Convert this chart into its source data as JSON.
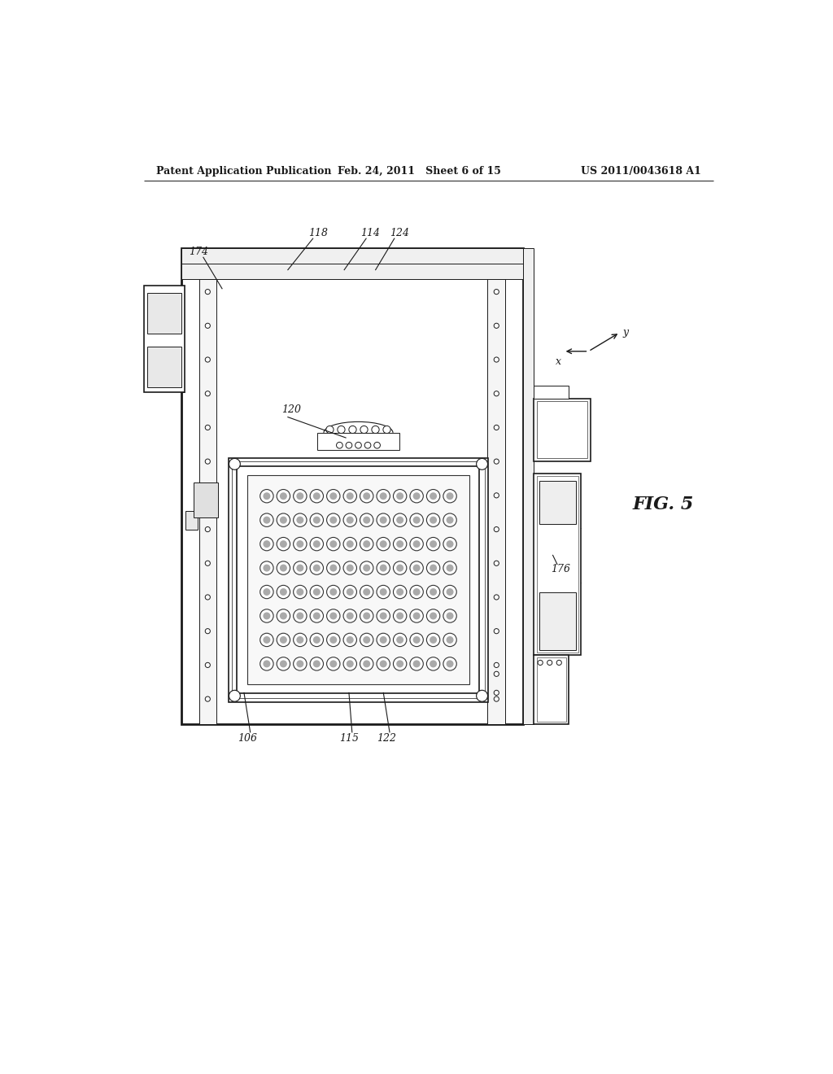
{
  "bg_color": "#ffffff",
  "header_left": "Patent Application Publication",
  "header_mid": "Feb. 24, 2011   Sheet 6 of 15",
  "header_right": "US 2011/0043618 A1",
  "fig_label": "FIG. 5",
  "dark": "#1a1a1a"
}
